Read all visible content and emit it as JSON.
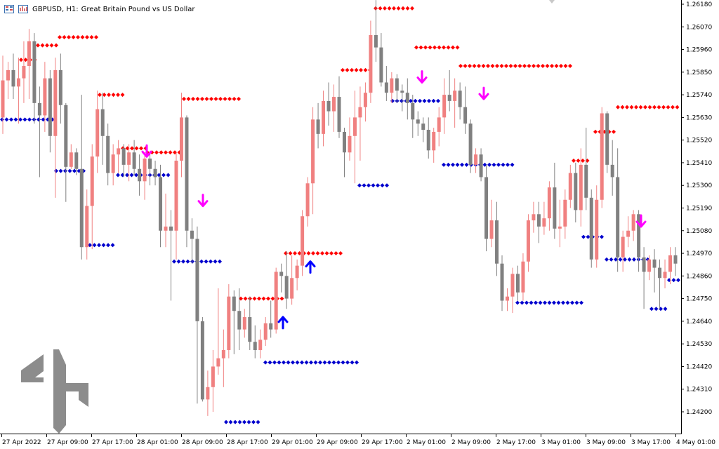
{
  "header": {
    "symbol": "GBPUSD, H1:",
    "description": "Great Britain Pound vs US Dollar"
  },
  "colors": {
    "bull": "#f08080",
    "bear": "#808080",
    "resistance": "#ff0000",
    "support": "#0000cd",
    "sell_arrow": "#ff00ff",
    "buy_arrow": "#0000ff",
    "watermark": "#8c8c8c"
  },
  "chart_data": {
    "type": "candlestick",
    "y_ticks": [
      "1.26180",
      "1.26070",
      "1.25960",
      "1.25850",
      "1.25740",
      "1.25630",
      "1.25520",
      "1.25410",
      "1.25300",
      "1.25190",
      "1.25080",
      "1.24970",
      "1.24860",
      "1.24750",
      "1.24640",
      "1.24530",
      "1.24420",
      "1.24310",
      "1.24200"
    ],
    "ylim": [
      1.2412,
      1.262
    ],
    "x_ticks": [
      "27 Apr 2022",
      "27 Apr 09:00",
      "27 Apr 17:00",
      "28 Apr 01:00",
      "28 Apr 09:00",
      "28 Apr 17:00",
      "29 Apr 01:00",
      "29 Apr 09:00",
      "29 Apr 17:00",
      "2 May 01:00",
      "2 May 09:00",
      "2 May 17:00",
      "3 May 01:00",
      "3 May 09:00",
      "3 May 17:00",
      "4 May 01:00"
    ],
    "candles": [
      [
        1.2563,
        1.2593,
        1.2555,
        1.2581
      ],
      [
        1.2581,
        1.259,
        1.2572,
        1.2586
      ],
      [
        1.2586,
        1.2594,
        1.2572,
        1.2578
      ],
      [
        1.2578,
        1.2592,
        1.256,
        1.2582
      ],
      [
        1.2582,
        1.26,
        1.257,
        1.2588
      ],
      [
        1.2588,
        1.2606,
        1.2572,
        1.26
      ],
      [
        1.26,
        1.2604,
        1.256,
        1.257
      ],
      [
        1.257,
        1.2578,
        1.2534,
        1.2564
      ],
      [
        1.2564,
        1.259,
        1.2556,
        1.2582
      ],
      [
        1.2582,
        1.2586,
        1.2546,
        1.2554
      ],
      [
        1.2554,
        1.2592,
        1.2524,
        1.2586
      ],
      [
        1.2586,
        1.2594,
        1.256,
        1.2569
      ],
      [
        1.2569,
        1.257,
        1.2522,
        1.2539
      ],
      [
        1.2539,
        1.255,
        1.2538,
        1.2546
      ],
      [
        1.2546,
        1.2548,
        1.2535,
        1.2538
      ],
      [
        1.2538,
        1.2574,
        1.2494,
        1.25
      ],
      [
        1.25,
        1.2528,
        1.2494,
        1.252
      ],
      [
        1.252,
        1.255,
        1.2499,
        1.2544
      ],
      [
        1.2544,
        1.2576,
        1.2536,
        1.2567
      ],
      [
        1.2567,
        1.2575,
        1.254,
        1.2554
      ],
      [
        1.2554,
        1.256,
        1.253,
        1.2536
      ],
      [
        1.2536,
        1.255,
        1.253,
        1.2545
      ],
      [
        1.2545,
        1.2552,
        1.2536,
        1.2548
      ],
      [
        1.2548,
        1.255,
        1.2534,
        1.254
      ],
      [
        1.254,
        1.255,
        1.2532,
        1.2546
      ],
      [
        1.2546,
        1.2552,
        1.2535,
        1.2538
      ],
      [
        1.2538,
        1.2545,
        1.2525,
        1.2532
      ],
      [
        1.2532,
        1.2546,
        1.2523,
        1.2543
      ],
      [
        1.2543,
        1.2546,
        1.253,
        1.2538
      ],
      [
        1.2538,
        1.2542,
        1.253,
        1.2534
      ],
      [
        1.2534,
        1.254,
        1.25,
        1.2508
      ],
      [
        1.2508,
        1.2526,
        1.25,
        1.251
      ],
      [
        1.251,
        1.2518,
        1.2474,
        1.2508
      ],
      [
        1.2508,
        1.2546,
        1.2494,
        1.2542
      ],
      [
        1.2542,
        1.2575,
        1.2534,
        1.2563
      ],
      [
        1.2563,
        1.2564,
        1.25,
        1.2508
      ],
      [
        1.2508,
        1.2514,
        1.2492,
        1.2504
      ],
      [
        1.2504,
        1.251,
        1.2424,
        1.2464
      ],
      [
        1.2464,
        1.2466,
        1.2425,
        1.2426
      ],
      [
        1.2426,
        1.244,
        1.2418,
        1.2432
      ],
      [
        1.2432,
        1.245,
        1.242,
        1.2442
      ],
      [
        1.2442,
        1.248,
        1.2438,
        1.2446
      ],
      [
        1.2446,
        1.246,
        1.2432,
        1.245
      ],
      [
        1.245,
        1.2482,
        1.2446,
        1.2476
      ],
      [
        1.2476,
        1.2479,
        1.2448,
        1.2469
      ],
      [
        1.2469,
        1.248,
        1.245,
        1.246
      ],
      [
        1.246,
        1.247,
        1.2456,
        1.2466
      ],
      [
        1.2466,
        1.2476,
        1.245,
        1.2454
      ],
      [
        1.2454,
        1.2462,
        1.2446,
        1.245
      ],
      [
        1.245,
        1.246,
        1.2446,
        1.2455
      ],
      [
        1.2455,
        1.2466,
        1.2452,
        1.2463
      ],
      [
        1.2463,
        1.2474,
        1.2456,
        1.246
      ],
      [
        1.246,
        1.249,
        1.2458,
        1.2488
      ],
      [
        1.2488,
        1.2492,
        1.2478,
        1.2486
      ],
      [
        1.2486,
        1.2498,
        1.247,
        1.2475
      ],
      [
        1.2475,
        1.2496,
        1.2472,
        1.2485
      ],
      [
        1.2485,
        1.2494,
        1.2479,
        1.2491
      ],
      [
        1.2491,
        1.2518,
        1.2486,
        1.2515
      ],
      [
        1.2515,
        1.2534,
        1.251,
        1.2531
      ],
      [
        1.2531,
        1.2568,
        1.2516,
        1.2562
      ],
      [
        1.2562,
        1.257,
        1.2548,
        1.2555
      ],
      [
        1.2555,
        1.2576,
        1.2549,
        1.2571
      ],
      [
        1.2571,
        1.258,
        1.2559,
        1.2566
      ],
      [
        1.2566,
        1.2579,
        1.2556,
        1.2573
      ],
      [
        1.2573,
        1.2583,
        1.2553,
        1.2556
      ],
      [
        1.2556,
        1.2558,
        1.2534,
        1.2546
      ],
      [
        1.2546,
        1.2563,
        1.2542,
        1.2554
      ],
      [
        1.2554,
        1.2576,
        1.2531,
        1.2563
      ],
      [
        1.2563,
        1.2578,
        1.2542,
        1.2568
      ],
      [
        1.2568,
        1.258,
        1.2561,
        1.2575
      ],
      [
        1.2575,
        1.261,
        1.257,
        1.2603
      ],
      [
        1.2603,
        1.262,
        1.259,
        1.2597
      ],
      [
        1.2597,
        1.2604,
        1.2578,
        1.258
      ],
      [
        1.258,
        1.2588,
        1.2571,
        1.2575
      ],
      [
        1.2575,
        1.2585,
        1.257,
        1.2582
      ],
      [
        1.2582,
        1.2584,
        1.257,
        1.2576
      ],
      [
        1.2576,
        1.2579,
        1.2566,
        1.2575
      ],
      [
        1.2575,
        1.2582,
        1.2562,
        1.257
      ],
      [
        1.257,
        1.2574,
        1.2553,
        1.2562
      ],
      [
        1.2562,
        1.2566,
        1.2554,
        1.256
      ],
      [
        1.256,
        1.2563,
        1.2551,
        1.2557
      ],
      [
        1.2557,
        1.2563,
        1.2543,
        1.2547
      ],
      [
        1.2547,
        1.2558,
        1.2541,
        1.2556
      ],
      [
        1.2556,
        1.2568,
        1.2549,
        1.2563
      ],
      [
        1.2563,
        1.2582,
        1.2555,
        1.2574
      ],
      [
        1.2574,
        1.2586,
        1.2566,
        1.2571
      ],
      [
        1.2571,
        1.2582,
        1.2558,
        1.2576
      ],
      [
        1.2576,
        1.258,
        1.2562,
        1.2568
      ],
      [
        1.2568,
        1.2578,
        1.2555,
        1.256
      ],
      [
        1.256,
        1.2562,
        1.2536,
        1.254
      ],
      [
        1.254,
        1.2548,
        1.2536,
        1.2545
      ],
      [
        1.2545,
        1.2548,
        1.2532,
        1.2534
      ],
      [
        1.2534,
        1.254,
        1.2498,
        1.2504
      ],
      [
        1.2504,
        1.2523,
        1.25,
        1.2513
      ],
      [
        1.2513,
        1.2522,
        1.2486,
        1.2492
      ],
      [
        1.2492,
        1.2496,
        1.2469,
        1.2474
      ],
      [
        1.2474,
        1.248,
        1.2469,
        1.2476
      ],
      [
        1.2476,
        1.249,
        1.2468,
        1.2487
      ],
      [
        1.2487,
        1.2491,
        1.2474,
        1.2478
      ],
      [
        1.2478,
        1.2497,
        1.2474,
        1.2493
      ],
      [
        1.2493,
        1.2516,
        1.2488,
        1.2513
      ],
      [
        1.2513,
        1.2522,
        1.2507,
        1.2516
      ],
      [
        1.2516,
        1.2522,
        1.2502,
        1.251
      ],
      [
        1.251,
        1.2522,
        1.2506,
        1.2514
      ],
      [
        1.2514,
        1.2532,
        1.2508,
        1.2529
      ],
      [
        1.2529,
        1.2541,
        1.2504,
        1.2509
      ],
      [
        1.2509,
        1.2523,
        1.25,
        1.251
      ],
      [
        1.251,
        1.2528,
        1.2504,
        1.2523
      ],
      [
        1.2523,
        1.254,
        1.2519,
        1.2536
      ],
      [
        1.2536,
        1.2541,
        1.2512,
        1.2518
      ],
      [
        1.2518,
        1.2548,
        1.251,
        1.254
      ],
      [
        1.254,
        1.2558,
        1.2518,
        1.2524
      ],
      [
        1.2524,
        1.2528,
        1.249,
        1.2494
      ],
      [
        1.2494,
        1.253,
        1.249,
        1.2523
      ],
      [
        1.2523,
        1.2568,
        1.2519,
        1.2565
      ],
      [
        1.2565,
        1.2566,
        1.2536,
        1.254
      ],
      [
        1.254,
        1.2552,
        1.2525,
        1.2534
      ],
      [
        1.2534,
        1.2548,
        1.2488,
        1.2495
      ],
      [
        1.2495,
        1.2508,
        1.2488,
        1.2505
      ],
      [
        1.2505,
        1.2515,
        1.25,
        1.2508
      ],
      [
        1.2508,
        1.2518,
        1.2503,
        1.2516
      ],
      [
        1.2516,
        1.2518,
        1.2488,
        1.2495
      ],
      [
        1.2495,
        1.25,
        1.247,
        1.2488
      ],
      [
        1.2488,
        1.2496,
        1.2484,
        1.2494
      ],
      [
        1.2494,
        1.2499,
        1.2478,
        1.249
      ],
      [
        1.249,
        1.2494,
        1.247,
        1.2485
      ],
      [
        1.2485,
        1.2494,
        1.248,
        1.2488
      ],
      [
        1.2488,
        1.25,
        1.2482,
        1.2496
      ],
      [
        1.2496,
        1.25,
        1.2486,
        1.2492
      ]
    ],
    "resistance_levels": [
      {
        "from": 30,
        "to": 52,
        "value": 1.2591
      },
      {
        "from": 54,
        "to": 84,
        "value": 1.2598
      },
      {
        "from": 85,
        "to": 138,
        "value": 1.2602
      },
      {
        "from": 142,
        "to": 180,
        "value": 1.2574
      },
      {
        "from": 175,
        "to": 212,
        "value": 1.2548
      },
      {
        "from": 210,
        "to": 260,
        "value": 1.2546
      },
      {
        "from": 262,
        "to": 340,
        "value": 1.2572
      },
      {
        "from": 343,
        "to": 405,
        "value": 1.2475
      },
      {
        "from": 407,
        "to": 485,
        "value": 1.2497
      },
      {
        "from": 488,
        "to": 532,
        "value": 1.2586
      },
      {
        "from": 535,
        "to": 590,
        "value": 1.2616
      },
      {
        "from": 593,
        "to": 652,
        "value": 1.2597
      },
      {
        "from": 656,
        "to": 812,
        "value": 1.2588
      },
      {
        "from": 817,
        "to": 842,
        "value": 1.2542
      },
      {
        "from": 848,
        "to": 876,
        "value": 1.2556
      },
      {
        "from": 880,
        "to": 970,
        "value": 1.2568
      }
    ],
    "support_levels": [
      {
        "from": 3,
        "to": 75,
        "value": 1.2562
      },
      {
        "from": 80,
        "to": 124,
        "value": 1.2537
      },
      {
        "from": 128,
        "to": 163,
        "value": 1.2501
      },
      {
        "from": 168,
        "to": 242,
        "value": 1.2535
      },
      {
        "from": 248,
        "to": 316,
        "value": 1.2493
      },
      {
        "from": 322,
        "to": 372,
        "value": 1.2415
      },
      {
        "from": 378,
        "to": 508,
        "value": 1.2444
      },
      {
        "from": 512,
        "to": 556,
        "value": 1.253
      },
      {
        "from": 559,
        "to": 628,
        "value": 1.2571
      },
      {
        "from": 632,
        "to": 732,
        "value": 1.254
      },
      {
        "from": 737,
        "to": 828,
        "value": 1.2473
      },
      {
        "from": 831,
        "to": 858,
        "value": 1.2505
      },
      {
        "from": 864,
        "to": 925,
        "value": 1.2494
      },
      {
        "from": 928,
        "to": 948,
        "value": 1.247
      },
      {
        "from": 953,
        "to": 970,
        "value": 1.2484
      }
    ],
    "sell_signals": [
      {
        "x": 209,
        "value": 1.2546
      },
      {
        "x": 289,
        "value": 1.2522
      },
      {
        "x": 601,
        "value": 1.2582
      },
      {
        "x": 689,
        "value": 1.2574
      },
      {
        "x": 913,
        "value": 1.2512
      }
    ],
    "buy_signals": [
      {
        "x": 403,
        "value": 1.2464
      },
      {
        "x": 442,
        "value": 1.2491
      }
    ]
  }
}
